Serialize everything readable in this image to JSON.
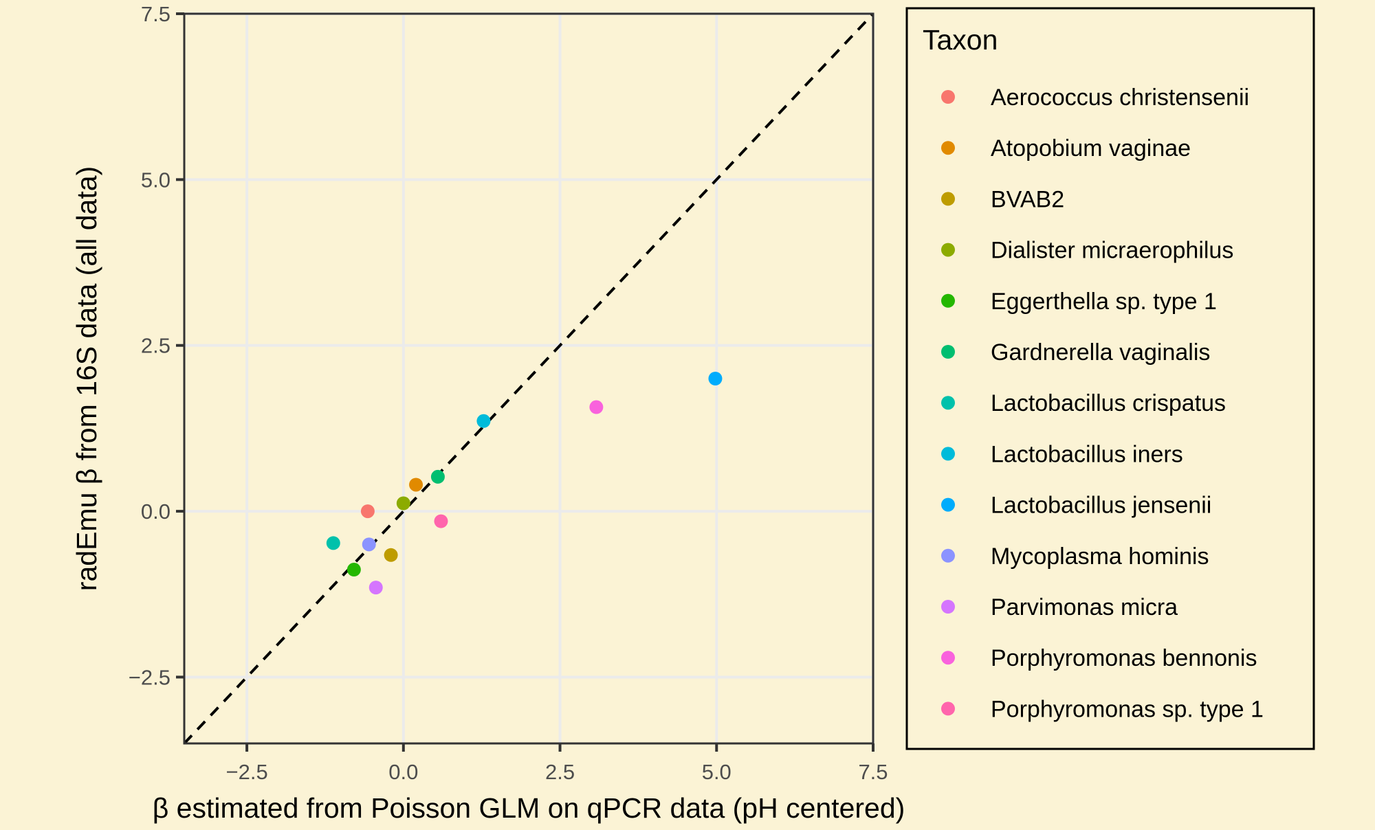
{
  "chart_data": {
    "type": "scatter",
    "title": "",
    "xlabel": "β estimated from Poisson GLM on qPCR data (pH centered)",
    "ylabel": "radEmu β from 16S data (all data)",
    "xlim": [
      -3.5,
      7.5
    ],
    "ylim": [
      -3.5,
      7.5
    ],
    "x_ticks": [
      -2.5,
      0.0,
      2.5,
      5.0,
      7.5
    ],
    "x_tick_labels": [
      "−2.5",
      "0.0",
      "2.5",
      "5.0",
      "7.5"
    ],
    "y_ticks": [
      -2.5,
      0.0,
      2.5,
      5.0,
      7.5
    ],
    "y_tick_labels": [
      "−2.5",
      "0.0",
      "2.5",
      "5.0",
      "7.5"
    ],
    "grid": true,
    "reference_line": {
      "type": "identity",
      "style": "dashed",
      "color": "#000000"
    },
    "legend": {
      "title": "Taxon",
      "placement": "right"
    },
    "series": [
      {
        "name": "Aerococcus christensenii",
        "color": "#F8766D",
        "x": -0.57,
        "y": 0.0
      },
      {
        "name": "Atopobium vaginae",
        "color": "#E18A00",
        "x": 0.2,
        "y": 0.4
      },
      {
        "name": "BVAB2",
        "color": "#BE9C00",
        "x": -0.2,
        "y": -0.66
      },
      {
        "name": "Dialister micraerophilus",
        "color": "#8CAB00",
        "x": 0.0,
        "y": 0.12
      },
      {
        "name": "Eggerthella sp. type 1",
        "color": "#24B700",
        "x": -0.79,
        "y": -0.88
      },
      {
        "name": "Gardnerella vaginalis",
        "color": "#00BE70",
        "x": 0.55,
        "y": 0.52
      },
      {
        "name": "Lactobacillus crispatus",
        "color": "#00C1AB",
        "x": -1.12,
        "y": -0.48
      },
      {
        "name": "Lactobacillus iners",
        "color": "#00BBDA",
        "x": 1.28,
        "y": 1.36
      },
      {
        "name": "Lactobacillus jensenii",
        "color": "#00ACFC",
        "x": 4.98,
        "y": 2.0
      },
      {
        "name": "Mycoplasma hominis",
        "color": "#8B93FF",
        "x": -0.55,
        "y": -0.5
      },
      {
        "name": "Parvimonas micra",
        "color": "#D575FE",
        "x": -0.44,
        "y": -1.15
      },
      {
        "name": "Porphyromonas bennonis",
        "color": "#F962DD",
        "x": 3.08,
        "y": 1.57
      },
      {
        "name": "Porphyromonas sp. type 1",
        "color": "#FF65AC",
        "x": 0.6,
        "y": -0.15
      }
    ]
  }
}
